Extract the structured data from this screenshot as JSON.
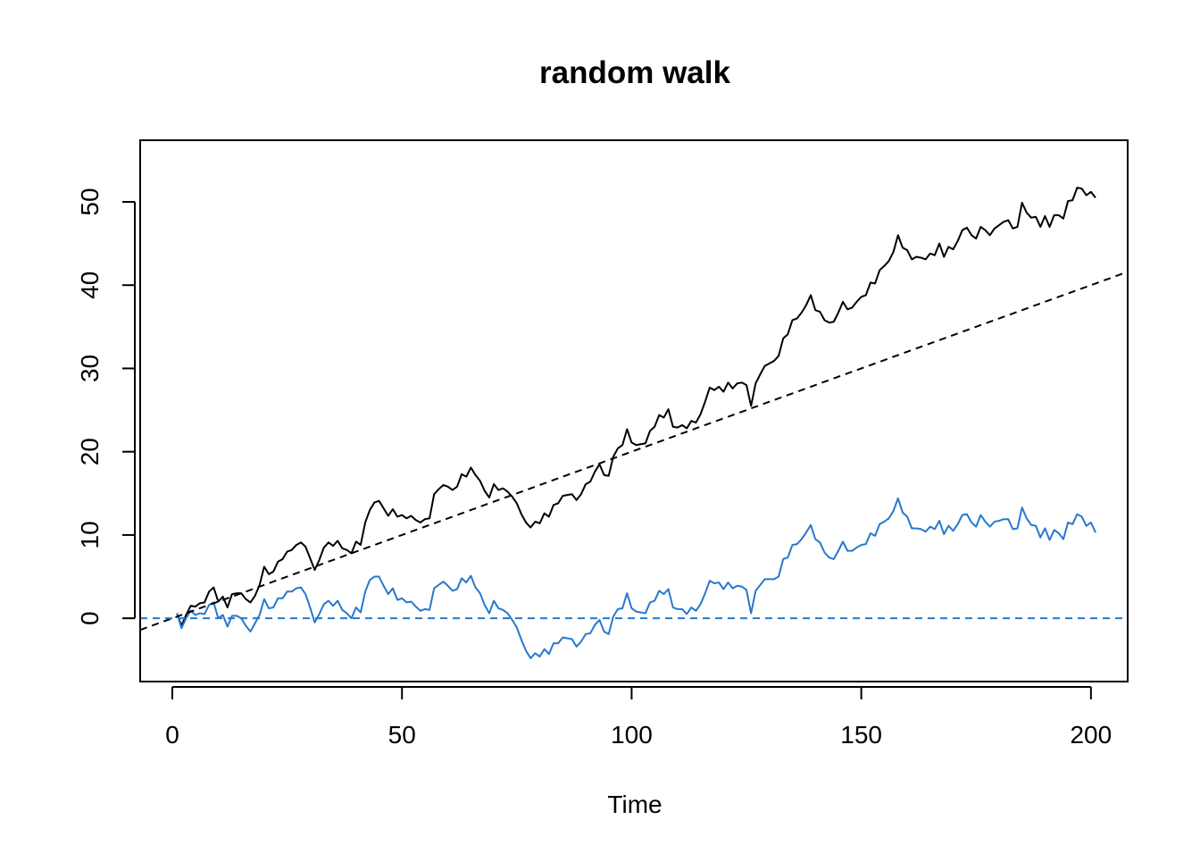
{
  "chart_data": {
    "type": "line",
    "title": "random walk",
    "xlabel": "Time",
    "ylabel": "",
    "xlim": [
      -7,
      208
    ],
    "ylim": [
      -7.6,
      57.4
    ],
    "x_ticks": [
      0,
      50,
      100,
      150,
      200
    ],
    "y_ticks": [
      0,
      10,
      20,
      30,
      40,
      50
    ],
    "grid": false,
    "legend": "none",
    "series": [
      {
        "style": "solid",
        "color": "#000000",
        "x_start": 1,
        "values": [
          0.6,
          -0.9,
          0.4,
          1.5,
          1.4,
          1.8,
          1.9,
          3.2,
          3.7,
          2.0,
          2.6,
          1.3,
          2.9,
          3.0,
          3.0,
          2.3,
          1.9,
          2.7,
          4.0,
          6.2,
          5.3,
          5.6,
          6.8,
          7.1,
          8.0,
          8.2,
          8.8,
          9.1,
          8.6,
          7.2,
          5.8,
          7.0,
          8.5,
          9.1,
          8.7,
          9.3,
          8.4,
          8.2,
          7.8,
          9.2,
          8.8,
          11.5,
          13.0,
          13.9,
          14.1,
          13.2,
          12.3,
          13.1,
          12.2,
          12.4,
          12.0,
          12.3,
          11.8,
          11.5,
          11.9,
          12.0,
          14.9,
          15.5,
          16.0,
          15.8,
          15.4,
          15.8,
          17.3,
          17.0,
          18.1,
          17.2,
          16.5,
          15.3,
          14.5,
          16.1,
          15.4,
          15.6,
          15.2,
          14.6,
          13.8,
          12.5,
          11.5,
          10.9,
          11.6,
          11.4,
          12.6,
          12.2,
          13.6,
          13.8,
          14.7,
          14.8,
          14.9,
          14.2,
          14.9,
          16.1,
          16.4,
          17.6,
          18.5,
          17.2,
          17.1,
          19.4,
          20.4,
          20.8,
          22.7,
          21.1,
          20.8,
          20.9,
          21.0,
          22.5,
          23.0,
          24.4,
          24.1,
          25.1,
          23.0,
          22.9,
          23.2,
          22.8,
          23.7,
          23.5,
          24.5,
          26.0,
          27.7,
          27.4,
          27.8,
          27.2,
          28.3,
          27.6,
          28.2,
          28.3,
          28.0,
          25.5,
          28.2,
          29.3,
          30.3,
          30.6,
          30.9,
          31.5,
          33.6,
          34.1,
          35.8,
          36.0,
          36.7,
          37.6,
          38.8,
          37.0,
          36.8,
          35.8,
          35.5,
          35.6,
          36.7,
          38.0,
          37.1,
          37.3,
          38.0,
          38.6,
          38.8,
          40.3,
          40.2,
          41.8,
          42.3,
          42.9,
          44.0,
          46.0,
          44.5,
          44.2,
          43.1,
          43.4,
          43.3,
          43.1,
          43.8,
          43.6,
          45.0,
          43.4,
          44.6,
          44.3,
          45.3,
          46.6,
          46.9,
          46.0,
          45.6,
          47.0,
          46.6,
          46.0,
          46.8,
          47.2,
          47.6,
          47.8,
          46.8,
          47.0,
          49.9,
          48.7,
          48.1,
          48.2,
          47.0,
          48.3,
          47.0,
          48.4,
          48.4,
          48.0,
          50.1,
          50.2,
          51.7,
          51.6,
          50.8,
          51.2,
          50.5
        ]
      },
      {
        "style": "solid",
        "color": "#2778cc",
        "x_start": 1,
        "values": [
          0.6,
          -1.2,
          0.0,
          0.9,
          0.4,
          0.6,
          0.5,
          1.6,
          1.9,
          0.0,
          0.4,
          -1.0,
          0.3,
          0.3,
          0.0,
          -0.9,
          -1.6,
          -0.6,
          0.4,
          2.3,
          1.2,
          1.3,
          2.4,
          2.4,
          3.2,
          3.2,
          3.6,
          3.7,
          2.9,
          1.3,
          -0.5,
          0.5,
          1.7,
          2.1,
          1.5,
          2.1,
          1.0,
          0.6,
          0.0,
          1.3,
          0.7,
          3.2,
          4.6,
          5.0,
          5.0,
          3.9,
          2.9,
          3.6,
          2.2,
          2.4,
          1.9,
          2.0,
          1.4,
          0.9,
          1.1,
          1.0,
          3.6,
          4.0,
          4.4,
          3.9,
          3.3,
          3.5,
          4.8,
          4.3,
          5.1,
          3.7,
          3.0,
          1.6,
          0.6,
          2.1,
          1.2,
          1.0,
          0.6,
          -0.2,
          -1.1,
          -2.6,
          -3.9,
          -4.8,
          -4.2,
          -4.6,
          -3.7,
          -4.3,
          -3.0,
          -3.0,
          -2.3,
          -2.4,
          -2.5,
          -3.4,
          -2.8,
          -1.9,
          -1.8,
          -0.8,
          -0.2,
          -1.6,
          -1.9,
          0.2,
          1.1,
          1.2,
          3.0,
          1.2,
          0.8,
          0.7,
          0.6,
          1.9,
          2.1,
          3.3,
          2.9,
          3.5,
          1.3,
          1.1,
          1.1,
          0.5,
          1.3,
          0.9,
          1.7,
          3.0,
          4.5,
          4.2,
          4.3,
          3.5,
          4.3,
          3.6,
          3.9,
          3.8,
          3.4,
          0.6,
          3.3,
          4.0,
          4.7,
          4.7,
          4.7,
          5.0,
          7.1,
          7.3,
          8.8,
          8.9,
          9.5,
          10.3,
          11.2,
          9.5,
          9.1,
          7.9,
          7.3,
          7.1,
          8.1,
          9.2,
          8.1,
          8.1,
          8.5,
          8.8,
          8.9,
          10.2,
          9.9,
          11.3,
          11.6,
          12.0,
          12.9,
          14.4,
          12.7,
          12.2,
          10.8,
          10.8,
          10.7,
          10.4,
          11.0,
          10.7,
          11.7,
          10.1,
          11.1,
          10.5,
          11.3,
          12.4,
          12.5,
          11.5,
          11.0,
          12.4,
          11.6,
          11.0,
          11.6,
          11.7,
          11.9,
          11.9,
          10.7,
          10.8,
          13.3,
          12.0,
          11.2,
          11.1,
          9.7,
          10.8,
          9.4,
          10.6,
          10.2,
          9.5,
          11.5,
          11.3,
          12.5,
          12.2,
          11.1,
          11.5,
          10.3
        ]
      },
      {
        "style": "dashed",
        "color": "#000000",
        "intercept": 0,
        "slope": 0.2
      },
      {
        "style": "dashed",
        "color": "#2778cc",
        "intercept": 0,
        "slope": 0
      }
    ]
  }
}
